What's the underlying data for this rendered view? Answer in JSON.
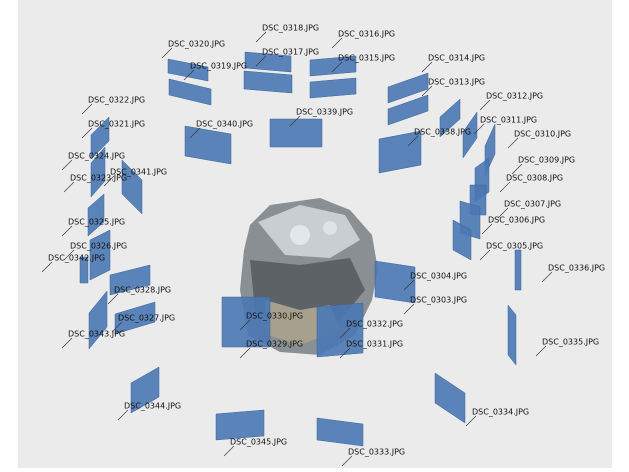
{
  "labels": [
    "DSC_0320.JPG",
    "DSC_0318.JPG",
    "DSC_0317.JPG",
    "DSC_0316.JPG",
    "DSC_0315.JPG",
    "DSC_0319.JPG",
    "DSC_0314.JPG",
    "DSC_0313.JPG",
    "DSC_0312.JPG",
    "DSC_0311.JPG",
    "DSC_0310.JPG",
    "DSC_0309.JPG",
    "DSC_0308.JPG",
    "DSC_0307.JPG",
    "DSC_0306.JPG",
    "DSC_0305.JPG",
    "DSC_0336.JPG",
    "DSC_0304.JPG",
    "DSC_0303.JPG",
    "DSC_0335.JPG",
    "DSC_0334.JPG",
    "DSC_0333.JPG",
    "DSC_0345.JPG",
    "DSC_0344.JPG",
    "DSC_0343.JPG",
    "DSC_0327.JPG",
    "DSC_0328.JPG",
    "DSC_0329.JPG",
    "DSC_0330.JPG",
    "DSC_0332.JPG",
    "DSC_0331.JPG",
    "DSC_0340.JPG",
    "DSC_0339.JPG",
    "DSC_0338.JPG",
    "DSC_0322.JPG",
    "DSC_0321.JPG",
    "DSC_0324.JPG",
    "DSC_0323.JPG",
    "DSC_0341.JPG",
    "DSC_0325.JPG",
    "DSC_0326.JPG",
    "DSC_0342.JPG"
  ]
}
